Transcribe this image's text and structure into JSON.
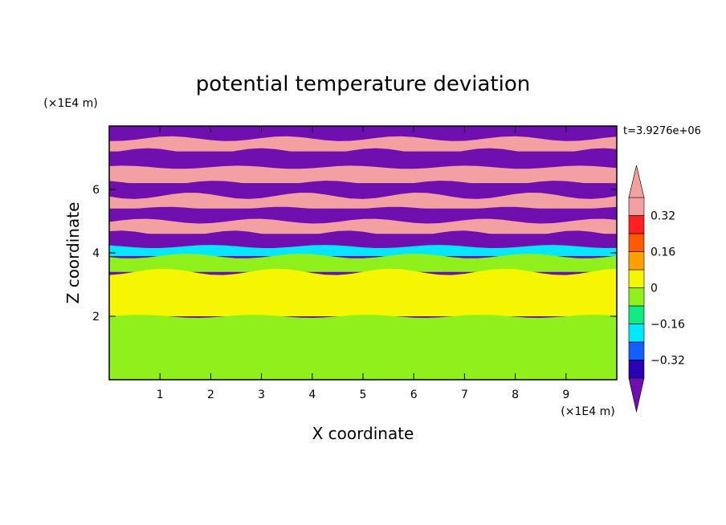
{
  "chart_data": {
    "type": "heatmap",
    "title": "potential temperature deviation",
    "xlabel": "X coordinate",
    "ylabel": "Z coordinate",
    "x_unit": "(×1E4 m)",
    "y_unit": "(×1E4 m)",
    "time_label": "t=3.9276e+06",
    "xlim": [
      0,
      10
    ],
    "ylim": [
      0,
      8
    ],
    "x_ticks": [
      1,
      2,
      3,
      4,
      5,
      6,
      7,
      8,
      9
    ],
    "y_ticks": [
      2,
      4,
      6
    ],
    "colorbar": {
      "levels": [
        -0.4,
        -0.32,
        -0.24,
        -0.16,
        -0.08,
        0,
        0.08,
        0.16,
        0.24,
        0.32,
        0.4
      ],
      "tick_labels": [
        "0.32",
        "0.16",
        "0",
        "−0.16",
        "−0.32"
      ],
      "tick_values": [
        0.32,
        0.16,
        0,
        -0.16,
        -0.32
      ],
      "colors_bottom_to_top": [
        "#6f0fb0",
        "#2a00b4",
        "#1460ff",
        "#00e8ff",
        "#12ea83",
        "#8ff01c",
        "#f6f600",
        "#ffa000",
        "#ff5a00",
        "#ff2020",
        "#f2a0a0"
      ],
      "extend": "both"
    },
    "field_bands": [
      {
        "z": [
          7.6,
          7.9
        ],
        "value": -0.45
      },
      {
        "z": [
          7.2,
          7.6
        ],
        "value": 0.45
      },
      {
        "z": [
          6.7,
          7.2
        ],
        "value": -0.45
      },
      {
        "z": [
          6.2,
          6.7
        ],
        "value": 0.45
      },
      {
        "z": [
          5.8,
          6.2
        ],
        "value": -0.45
      },
      {
        "z": [
          5.4,
          5.8
        ],
        "value": 0.45
      },
      {
        "z": [
          5.0,
          5.4
        ],
        "value": -0.45
      },
      {
        "z": [
          4.6,
          5.0
        ],
        "value": 0.45
      },
      {
        "z": [
          4.2,
          4.6
        ],
        "value": -0.45
      },
      {
        "z": [
          3.9,
          4.2
        ],
        "value": -0.2
      },
      {
        "z": [
          3.4,
          3.9
        ],
        "value": -0.04
      },
      {
        "z": [
          2.0,
          3.4
        ],
        "value": 0.04
      },
      {
        "z": [
          0.0,
          2.0
        ],
        "value": -0.04
      }
    ]
  }
}
